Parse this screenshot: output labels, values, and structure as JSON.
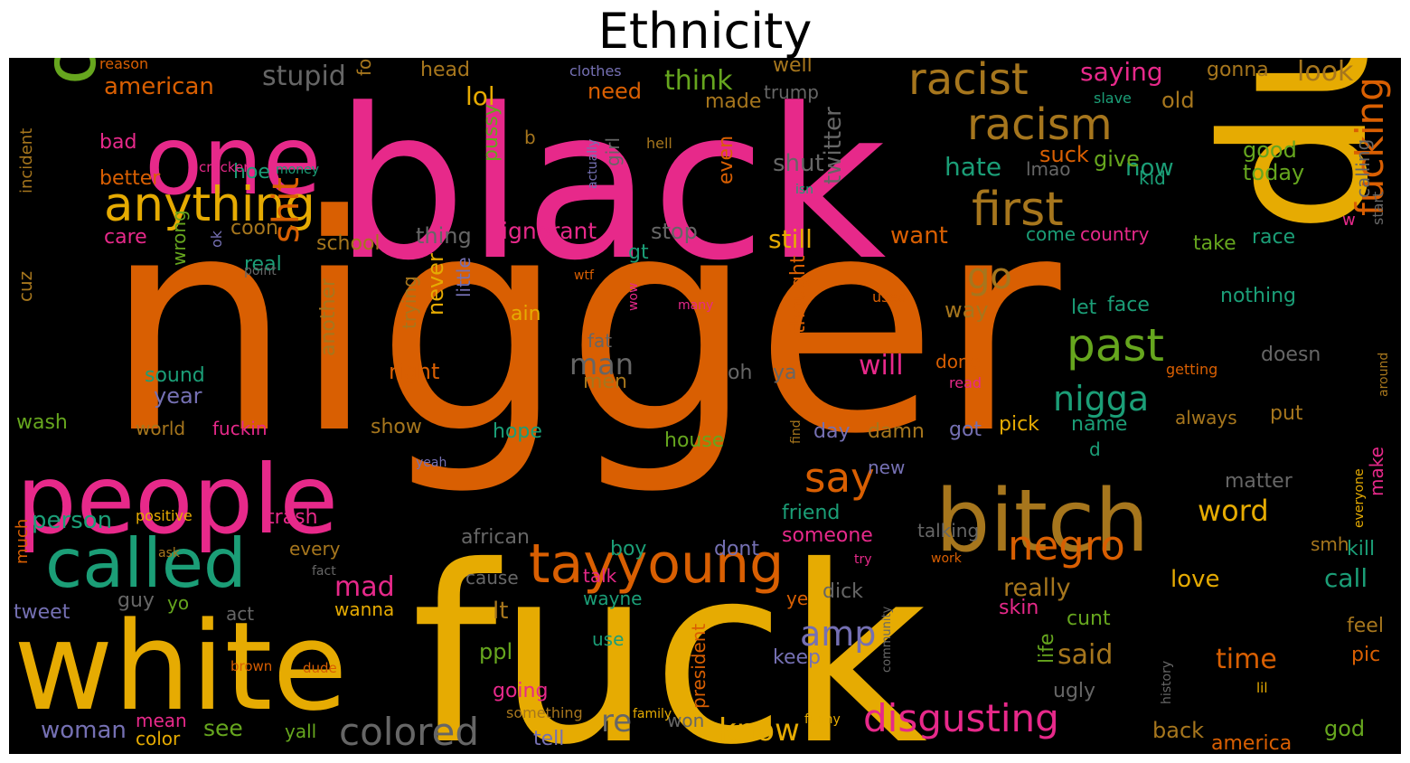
{
  "title": "Ethnicity",
  "palette": {
    "orange": "#d95f02",
    "pink": "#e7298a",
    "gold": "#e6ab02",
    "green": "#66a61e",
    "teal": "#1b9e77",
    "purple": "#7570b3",
    "brown": "#a6761d",
    "gray": "#666666"
  },
  "words": [
    {
      "text": "nigger",
      "color": "orange"
    },
    {
      "text": "fuck",
      "color": "gold"
    },
    {
      "text": "black",
      "color": "pink"
    },
    {
      "text": "dumb",
      "color": "gold"
    },
    {
      "text": "white",
      "color": "gold"
    },
    {
      "text": "people",
      "color": "pink"
    },
    {
      "text": "one",
      "color": "pink"
    },
    {
      "text": "obama",
      "color": "green"
    },
    {
      "text": "called",
      "color": "teal"
    },
    {
      "text": "bitch",
      "color": "brown"
    },
    {
      "text": "anything",
      "color": "gold"
    },
    {
      "text": "tayyoung",
      "color": "orange"
    },
    {
      "text": "racist",
      "color": "brown"
    },
    {
      "text": "racism",
      "color": "brown"
    },
    {
      "text": "first",
      "color": "brown"
    },
    {
      "text": "negro",
      "color": "orange"
    },
    {
      "text": "colored",
      "color": "gray"
    },
    {
      "text": "disgusting",
      "color": "pink"
    },
    {
      "text": "past",
      "color": "green"
    },
    {
      "text": "nigga",
      "color": "teal"
    },
    {
      "text": "say",
      "color": "orange"
    },
    {
      "text": "fucking",
      "color": "orange"
    },
    {
      "text": "shit",
      "color": "orange"
    },
    {
      "text": "go",
      "color": "brown"
    },
    {
      "text": "amp",
      "color": "purple"
    },
    {
      "text": "stupid",
      "color": "gray"
    },
    {
      "text": "think",
      "color": "green"
    },
    {
      "text": "saying",
      "color": "pink"
    },
    {
      "text": "look",
      "color": "brown"
    },
    {
      "text": "man",
      "color": "gray"
    },
    {
      "text": "know",
      "color": "gold"
    },
    {
      "text": "american",
      "color": "orange"
    },
    {
      "text": "re",
      "color": "gray"
    },
    {
      "text": "said",
      "color": "brown"
    },
    {
      "text": "time",
      "color": "orange"
    },
    {
      "text": "word",
      "color": "gold"
    },
    {
      "text": "will",
      "color": "pink"
    },
    {
      "text": "still",
      "color": "gold"
    },
    {
      "text": "hate",
      "color": "teal"
    },
    {
      "text": "lol",
      "color": "gold"
    },
    {
      "text": "twitter",
      "color": "gray"
    },
    {
      "text": "shut",
      "color": "gray"
    },
    {
      "text": "now",
      "color": "teal"
    },
    {
      "text": "ignorant",
      "color": "pink"
    },
    {
      "text": "want",
      "color": "orange"
    },
    {
      "text": "mad",
      "color": "pink"
    },
    {
      "text": "really",
      "color": "brown"
    },
    {
      "text": "woman",
      "color": "purple"
    },
    {
      "text": "see",
      "color": "green"
    },
    {
      "text": "person",
      "color": "teal"
    },
    {
      "text": "love",
      "color": "gold"
    },
    {
      "text": "call",
      "color": "teal"
    },
    {
      "text": "suck",
      "color": "orange"
    },
    {
      "text": "give",
      "color": "green"
    },
    {
      "text": "good",
      "color": "green"
    },
    {
      "text": "today",
      "color": "green"
    },
    {
      "text": "need",
      "color": "orange"
    },
    {
      "text": "head",
      "color": "brown"
    },
    {
      "text": "well",
      "color": "brown"
    },
    {
      "text": "gonna",
      "color": "brown"
    },
    {
      "text": "old",
      "color": "brown"
    },
    {
      "text": "calling",
      "color": "gray"
    },
    {
      "text": "made",
      "color": "brown"
    },
    {
      "text": "trump",
      "color": "gray"
    },
    {
      "text": "better",
      "color": "orange"
    },
    {
      "text": "bad",
      "color": "pink"
    },
    {
      "text": "hoe",
      "color": "teal"
    },
    {
      "text": "folk",
      "color": "brown"
    },
    {
      "text": "pussy",
      "color": "green"
    },
    {
      "text": "girl",
      "color": "gray"
    },
    {
      "text": "even",
      "color": "orange"
    },
    {
      "text": "lmao",
      "color": "gray"
    },
    {
      "text": "kid",
      "color": "teal"
    },
    {
      "text": "care",
      "color": "pink"
    },
    {
      "text": "coon",
      "color": "brown"
    },
    {
      "text": "thing",
      "color": "gray"
    },
    {
      "text": "stop",
      "color": "gray"
    },
    {
      "text": "school",
      "color": "brown"
    },
    {
      "text": "real",
      "color": "teal"
    },
    {
      "text": "come",
      "color": "teal"
    },
    {
      "text": "country",
      "color": "pink"
    },
    {
      "text": "take",
      "color": "green"
    },
    {
      "text": "race",
      "color": "teal"
    },
    {
      "text": "gt",
      "color": "teal"
    },
    {
      "text": "nothing",
      "color": "teal"
    },
    {
      "text": "let",
      "color": "teal"
    },
    {
      "text": "face",
      "color": "teal"
    },
    {
      "text": "way",
      "color": "brown"
    },
    {
      "text": "ain",
      "color": "gold"
    },
    {
      "text": "never",
      "color": "gold"
    },
    {
      "text": "trying",
      "color": "brown"
    },
    {
      "text": "little",
      "color": "purple"
    },
    {
      "text": "another",
      "color": "brown"
    },
    {
      "text": "thought",
      "color": "orange"
    },
    {
      "text": "fat",
      "color": "gray"
    },
    {
      "text": "right",
      "color": "orange"
    },
    {
      "text": "doesn",
      "color": "gray"
    },
    {
      "text": "done",
      "color": "orange"
    },
    {
      "text": "oh",
      "color": "gray"
    },
    {
      "text": "ya",
      "color": "gray"
    },
    {
      "text": "men",
      "color": "brown"
    },
    {
      "text": "sound",
      "color": "teal"
    },
    {
      "text": "year",
      "color": "purple"
    },
    {
      "text": "wrong",
      "color": "green"
    },
    {
      "text": "cuz",
      "color": "brown"
    },
    {
      "text": "wash",
      "color": "green"
    },
    {
      "text": "world",
      "color": "brown"
    },
    {
      "text": "fuckin",
      "color": "pink"
    },
    {
      "text": "show",
      "color": "brown"
    },
    {
      "text": "hope",
      "color": "teal"
    },
    {
      "text": "house",
      "color": "green"
    },
    {
      "text": "day",
      "color": "purple"
    },
    {
      "text": "damn",
      "color": "brown"
    },
    {
      "text": "got",
      "color": "purple"
    },
    {
      "text": "pick",
      "color": "gold"
    },
    {
      "text": "name",
      "color": "teal"
    },
    {
      "text": "always",
      "color": "brown"
    },
    {
      "text": "put",
      "color": "brown"
    },
    {
      "text": "d",
      "color": "teal"
    },
    {
      "text": "matter",
      "color": "gray"
    },
    {
      "text": "make",
      "color": "pink"
    },
    {
      "text": "friend",
      "color": "teal"
    },
    {
      "text": "someone",
      "color": "pink"
    },
    {
      "text": "new",
      "color": "purple"
    },
    {
      "text": "talking",
      "color": "gray"
    },
    {
      "text": "trash",
      "color": "pink"
    },
    {
      "text": "every",
      "color": "brown"
    },
    {
      "text": "african",
      "color": "gray"
    },
    {
      "text": "boy",
      "color": "teal"
    },
    {
      "text": "dont",
      "color": "purple"
    },
    {
      "text": "cause",
      "color": "gray"
    },
    {
      "text": "talk",
      "color": "pink"
    },
    {
      "text": "wayne",
      "color": "teal"
    },
    {
      "text": "guy",
      "color": "gray"
    },
    {
      "text": "yo",
      "color": "green"
    },
    {
      "text": "tweet",
      "color": "purple"
    },
    {
      "text": "act",
      "color": "gray"
    },
    {
      "text": "wanna",
      "color": "gold"
    },
    {
      "text": "lt",
      "color": "brown"
    },
    {
      "text": "ppl",
      "color": "green"
    },
    {
      "text": "use",
      "color": "teal"
    },
    {
      "text": "going",
      "color": "pink"
    },
    {
      "text": "mean",
      "color": "pink"
    },
    {
      "text": "color",
      "color": "gold"
    },
    {
      "text": "yall",
      "color": "green"
    },
    {
      "text": "tell",
      "color": "purple"
    },
    {
      "text": "won",
      "color": "gray"
    },
    {
      "text": "president",
      "color": "orange"
    },
    {
      "text": "ye",
      "color": "orange"
    },
    {
      "text": "dick",
      "color": "gray"
    },
    {
      "text": "keep",
      "color": "purple"
    },
    {
      "text": "life",
      "color": "green"
    },
    {
      "text": "skin",
      "color": "pink"
    },
    {
      "text": "cunt",
      "color": "green"
    },
    {
      "text": "ugly",
      "color": "gray"
    },
    {
      "text": "kill",
      "color": "teal"
    },
    {
      "text": "smh",
      "color": "brown"
    },
    {
      "text": "feel",
      "color": "brown"
    },
    {
      "text": "pic",
      "color": "orange"
    },
    {
      "text": "back",
      "color": "brown"
    },
    {
      "text": "god",
      "color": "green"
    },
    {
      "text": "america",
      "color": "orange"
    },
    {
      "text": "b",
      "color": "brown"
    },
    {
      "text": "w",
      "color": "pink"
    },
    {
      "text": "start",
      "color": "gray"
    },
    {
      "text": "incident",
      "color": "brown"
    },
    {
      "text": "reason",
      "color": "orange"
    },
    {
      "text": "clothes",
      "color": "purple"
    },
    {
      "text": "slave",
      "color": "teal"
    },
    {
      "text": "hell",
      "color": "brown"
    },
    {
      "text": "actually",
      "color": "purple"
    },
    {
      "text": "cracker",
      "color": "pink"
    },
    {
      "text": "money",
      "color": "teal"
    },
    {
      "text": "isn",
      "color": "teal"
    },
    {
      "text": "ok",
      "color": "purple"
    },
    {
      "text": "point",
      "color": "gray"
    },
    {
      "text": "wtf",
      "color": "orange"
    },
    {
      "text": "wow",
      "color": "pink"
    },
    {
      "text": "many",
      "color": "pink"
    },
    {
      "text": "used",
      "color": "orange"
    },
    {
      "text": "getting",
      "color": "orange"
    },
    {
      "text": "read",
      "color": "pink"
    },
    {
      "text": "around",
      "color": "brown"
    },
    {
      "text": "find",
      "color": "brown"
    },
    {
      "text": "yeah",
      "color": "purple"
    },
    {
      "text": "positive",
      "color": "gold"
    },
    {
      "text": "much",
      "color": "orange"
    },
    {
      "text": "ask",
      "color": "brown"
    },
    {
      "text": "fact",
      "color": "gray"
    },
    {
      "text": "try",
      "color": "pink"
    },
    {
      "text": "work",
      "color": "orange"
    },
    {
      "text": "everyone",
      "color": "gold"
    },
    {
      "text": "community",
      "color": "gray"
    },
    {
      "text": "history",
      "color": "gray"
    },
    {
      "text": "dude",
      "color": "orange"
    },
    {
      "text": "brown",
      "color": "orange"
    },
    {
      "text": "something",
      "color": "brown"
    },
    {
      "text": "family",
      "color": "gold"
    },
    {
      "text": "funny",
      "color": "gold"
    },
    {
      "text": "lil",
      "color": "gold"
    }
  ]
}
